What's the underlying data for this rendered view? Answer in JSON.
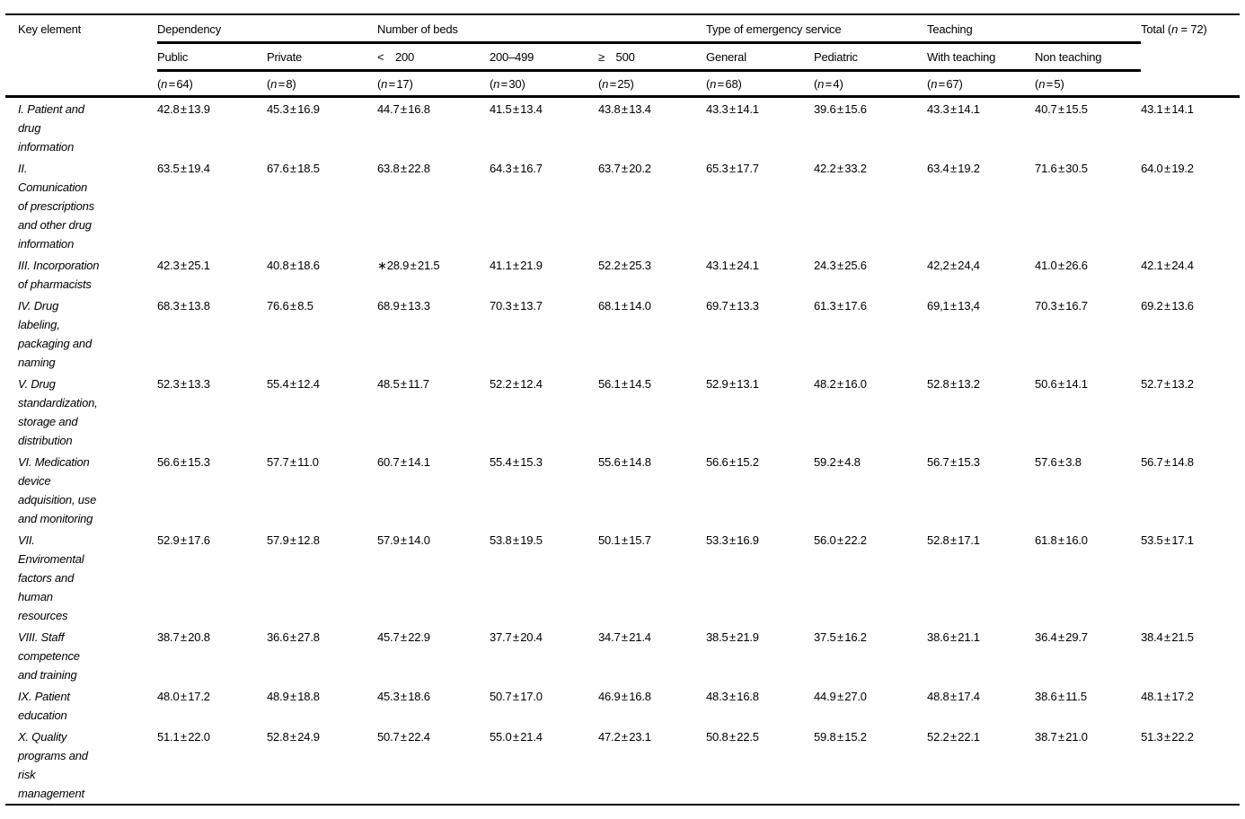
{
  "colors": {
    "text": "#000000",
    "background": "#ffffff",
    "rule": "#000000"
  },
  "table": {
    "corner_header": "Key element",
    "groups": [
      {
        "label": "Dependency",
        "span": 2
      },
      {
        "label": "Number of beds",
        "span": 3
      },
      {
        "label": "Type of emergency service",
        "span": 2
      },
      {
        "label": "Teaching",
        "span": 2
      }
    ],
    "subheaders": [
      "Public",
      "Private",
      "<  200",
      "200–499",
      "≥  500",
      "General",
      "Pediatric",
      "With teaching",
      "Non teaching"
    ],
    "counts": [
      "(n = 64)",
      "(n = 8)",
      "(n = 17)",
      "(n = 30)",
      "(n = 25)",
      "(n = 68)",
      "(n = 4)",
      "(n = 67)",
      "(n = 5)"
    ],
    "total_header": "Total (n = 72)",
    "rows": [
      {
        "label": "I. Patient and\ndrug\ninformation",
        "values": [
          "42.8 ± 13.9",
          "45.3 ± 16.9",
          "44.7 ± 16.8",
          "41.5 ± 13.4",
          "43.8 ± 13.4",
          "43.3 ± 14.1",
          "39.6 ± 15.6",
          "43.3 ± 14.1",
          "40.7 ± 15.5",
          "43.1 ± 14.1"
        ]
      },
      {
        "label": "II.\nComunication\nof prescriptions\nand other drug\ninformation",
        "values": [
          "63.5 ± 19.4",
          "67.6 ± 18.5",
          "63.8 ± 22.8",
          "64.3 ± 16.7",
          "63.7 ± 20.2",
          "65.3 ± 17.7",
          "42.2 ± 33.2",
          "63.4 ± 19.2",
          "71.6 ± 30.5",
          "64.0 ± 19.2"
        ]
      },
      {
        "label": "III. Incorporation\nof pharmacists",
        "values": [
          "42.3 ± 25.1",
          "40.8 ± 18.6",
          "∗28.9 ± 21.5",
          "41.1 ± 21.9",
          "52.2 ± 25.3",
          "43.1 ± 24.1",
          "24.3 ± 25.6",
          "42,2 ± 24,4",
          "41.0 ± 26.6",
          "42.1 ± 24.4"
        ]
      },
      {
        "label": "IV. Drug\nlabeling,\npackaging and\nnaming",
        "values": [
          "68.3 ± 13.8",
          "76.6 ± 8.5",
          "68.9 ± 13.3",
          "70.3 ± 13.7",
          "68.1 ± 14.0",
          "69.7 ± 13.3",
          "61.3 ± 17.6",
          "69,1 ± 13,4",
          "70.3 ± 16.7",
          "69.2 ± 13.6"
        ]
      },
      {
        "label": "V. Drug\nstandardization,\nstorage and\ndistribution",
        "values": [
          "52.3 ± 13.3",
          "55.4 ± 12.4",
          "48.5 ± 11.7",
          "52.2 ± 12.4",
          "56.1 ± 14.5",
          "52.9 ± 13.1",
          "48.2 ± 16.0",
          "52.8 ± 13.2",
          "50.6 ± 14.1",
          "52.7 ± 13.2"
        ]
      },
      {
        "label": "VI. Medication\ndevice\nadquisition, use\nand monitoring",
        "values": [
          "56.6 ± 15.3",
          "57.7 ± 11.0",
          "60.7 ± 14.1",
          "55.4 ± 15.3",
          "55.6 ± 14.8",
          "56.6 ± 15.2",
          "59.2 ± 4.8",
          "56.7 ± 15.3",
          "57.6 ± 3.8",
          "56.7 ± 14.8"
        ]
      },
      {
        "label": "VII.\nEnviromental\nfactors and\nhuman\nresources",
        "values": [
          "52.9 ± 17.6",
          "57.9 ± 12.8",
          "57.9 ± 14.0",
          "53.8 ± 19.5",
          "50.1 ± 15.7",
          "53.3 ± 16.9",
          "56.0 ± 22.2",
          "52.8 ± 17.1",
          "61.8 ± 16.0",
          "53.5 ± 17.1"
        ]
      },
      {
        "label": "VIII. Staff\ncompetence\nand training",
        "values": [
          "38.7 ± 20.8",
          "36.6 ± 27.8",
          "45.7 ± 22.9",
          "37.7 ± 20.4",
          "34.7 ± 21.4",
          "38.5 ± 21.9",
          "37.5 ± 16.2",
          "38.6 ± 21.1",
          "36.4 ± 29.7",
          "38.4 ± 21.5"
        ]
      },
      {
        "label": "IX. Patient\neducation",
        "values": [
          "48.0 ± 17.2",
          "48.9 ± 18.8",
          "45.3 ± 18.6",
          "50.7 ± 17.0",
          "46.9 ± 16.8",
          "48.3 ± 16.8",
          "44.9 ± 27.0",
          "48.8 ± 17.4",
          "38.6 ± 11.5",
          "48.1 ± 17.2"
        ]
      },
      {
        "label": "X. Quality\nprograms and\nrisk\nmanagement",
        "values": [
          "51.1 ± 22.0",
          "52.8 ± 24.9",
          "50.7 ± 22.4",
          "55.0 ± 21.4",
          "47.2 ± 23.1",
          "50.8 ± 22.5",
          "59.8 ± 15.2",
          "52.2 ± 22.1",
          "38.7 ± 21.0",
          "51.3 ± 22.2"
        ]
      }
    ]
  }
}
